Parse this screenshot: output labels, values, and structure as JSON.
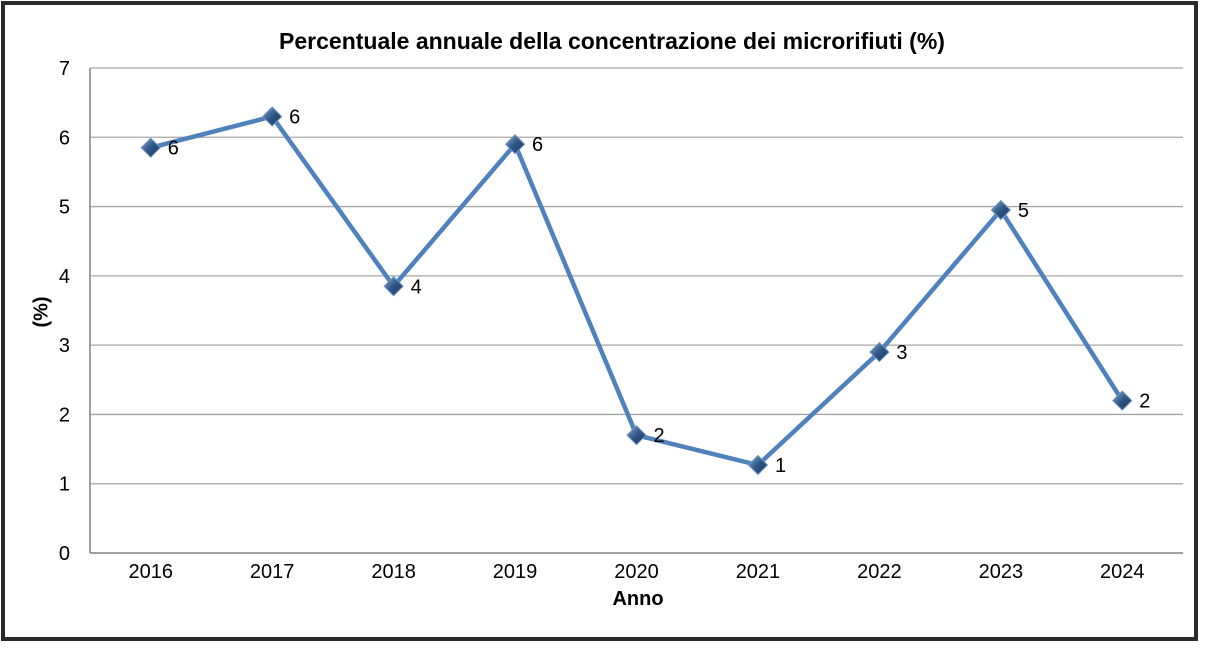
{
  "chart_data": {
    "type": "line",
    "title": "Percentuale annuale della concentrazione dei microrifiuti (%)",
    "xlabel": "Anno",
    "ylabel": "(%)",
    "categories": [
      "2016",
      "2017",
      "2018",
      "2019",
      "2020",
      "2021",
      "2022",
      "2023",
      "2024"
    ],
    "values": [
      5.85,
      6.3,
      3.85,
      5.9,
      1.7,
      1.27,
      2.9,
      4.95,
      2.2
    ],
    "point_labels": [
      "6",
      "6",
      "4",
      "6",
      "2",
      "1",
      "3",
      "5",
      "2"
    ],
    "ylim": [
      0,
      7
    ],
    "yticks": [
      0,
      1,
      2,
      3,
      4,
      5,
      6,
      7
    ],
    "grid": "horizontal",
    "legend_position": "none",
    "colors": {
      "line": "#4F81BD",
      "marker_gradient_light": "#85A9D1",
      "marker_gradient_mid": "#2E5684",
      "marker_gradient_dark": "#1E3A5F",
      "marker_outline": "#6C96C6",
      "gridline": "#A6A6A6",
      "axis": "#808080",
      "text": "#000000",
      "frame_border": "#2A2A2A",
      "background": "#FFFFFF"
    }
  }
}
